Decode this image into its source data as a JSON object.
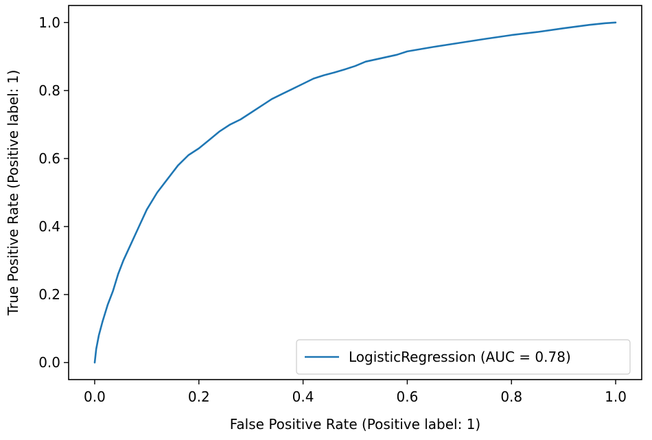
{
  "chart_data": {
    "type": "line",
    "title": "",
    "xlabel": "False Positive Rate (Positive label: 1)",
    "ylabel": "True Positive Rate (Positive label: 1)",
    "xlim": [
      -0.05,
      1.05
    ],
    "ylim": [
      -0.05,
      1.05
    ],
    "xticks": [
      0.0,
      0.2,
      0.4,
      0.6,
      0.8,
      1.0
    ],
    "yticks": [
      0.0,
      0.2,
      0.4,
      0.6,
      0.8,
      1.0
    ],
    "xtick_labels": [
      "0.0",
      "0.2",
      "0.4",
      "0.6",
      "0.8",
      "1.0"
    ],
    "ytick_labels": [
      "0.0",
      "0.2",
      "0.4",
      "0.6",
      "0.8",
      "1.0"
    ],
    "grid": false,
    "legend_position": "lower-right",
    "series": [
      {
        "name": "LogisticRegression (AUC = 0.78)",
        "color": "#1f77b4",
        "x": [
          0.0,
          0.003,
          0.008,
          0.015,
          0.025,
          0.035,
          0.045,
          0.055,
          0.07,
          0.085,
          0.1,
          0.12,
          0.14,
          0.16,
          0.18,
          0.2,
          0.22,
          0.24,
          0.26,
          0.28,
          0.3,
          0.32,
          0.34,
          0.36,
          0.38,
          0.4,
          0.42,
          0.44,
          0.46,
          0.48,
          0.5,
          0.52,
          0.55,
          0.58,
          0.6,
          0.65,
          0.7,
          0.75,
          0.8,
          0.85,
          0.9,
          0.95,
          0.98,
          1.0
        ],
        "y": [
          0.0,
          0.04,
          0.08,
          0.12,
          0.17,
          0.21,
          0.26,
          0.3,
          0.35,
          0.4,
          0.45,
          0.5,
          0.54,
          0.58,
          0.61,
          0.63,
          0.655,
          0.68,
          0.7,
          0.715,
          0.735,
          0.755,
          0.775,
          0.79,
          0.805,
          0.82,
          0.835,
          0.845,
          0.853,
          0.862,
          0.872,
          0.885,
          0.895,
          0.905,
          0.915,
          0.928,
          0.94,
          0.952,
          0.963,
          0.972,
          0.983,
          0.993,
          0.998,
          1.0
        ]
      }
    ]
  }
}
